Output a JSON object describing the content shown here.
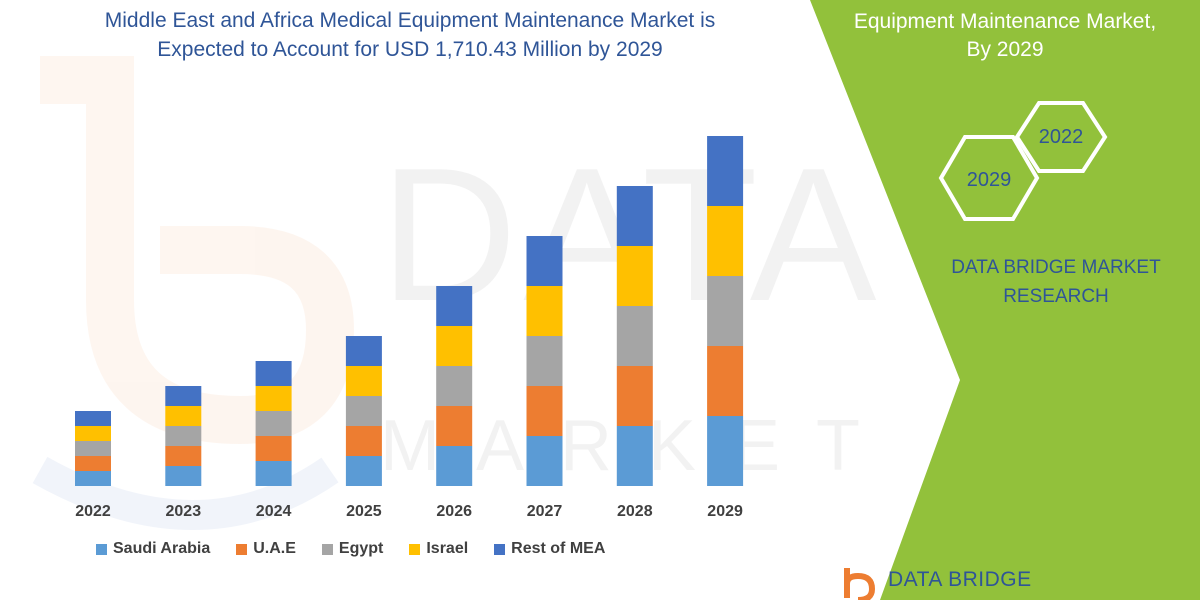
{
  "title": {
    "line1": "Middle East and Africa Medical Equipment Maintenance Market is",
    "line2": "Expected to Account for USD 1,710.43 Million by 2029"
  },
  "panel": {
    "title_line1": "Equipment Maintenance Market,",
    "title_line2": "By 2029",
    "hex_front": "2029",
    "hex_back": "2022",
    "brand_line1": "DATA BRIDGE MARKET",
    "brand_line2": "RESEARCH",
    "bg_color": "#92c13b"
  },
  "watermark": {
    "main": "DATA BRIDGE",
    "sub": "MARKET RESEARCH"
  },
  "logo": {
    "text": "DATA BRIDGE"
  },
  "chart_data": {
    "type": "bar",
    "stacked": true,
    "categories": [
      "2022",
      "2023",
      "2024",
      "2025",
      "2026",
      "2027",
      "2028",
      "2029"
    ],
    "series": [
      {
        "name": "Saudi Arabia",
        "color": "#5b9bd5",
        "values": [
          15,
          20,
          25,
          30,
          40,
          50,
          60,
          70
        ]
      },
      {
        "name": "U.A.E",
        "color": "#ed7d31",
        "values": [
          15,
          20,
          25,
          30,
          40,
          50,
          60,
          70
        ]
      },
      {
        "name": "Egypt",
        "color": "#a5a5a5",
        "values": [
          15,
          20,
          25,
          30,
          40,
          50,
          60,
          70
        ]
      },
      {
        "name": "Israel",
        "color": "#ffc000",
        "values": [
          15,
          20,
          25,
          30,
          40,
          50,
          60,
          70
        ]
      },
      {
        "name": "Rest of MEA",
        "color": "#4472c4",
        "values": [
          15,
          20,
          25,
          30,
          40,
          50,
          60,
          70
        ]
      }
    ],
    "ylim": [
      0,
      360
    ],
    "axis_visible": false,
    "legend_position": "bottom"
  }
}
